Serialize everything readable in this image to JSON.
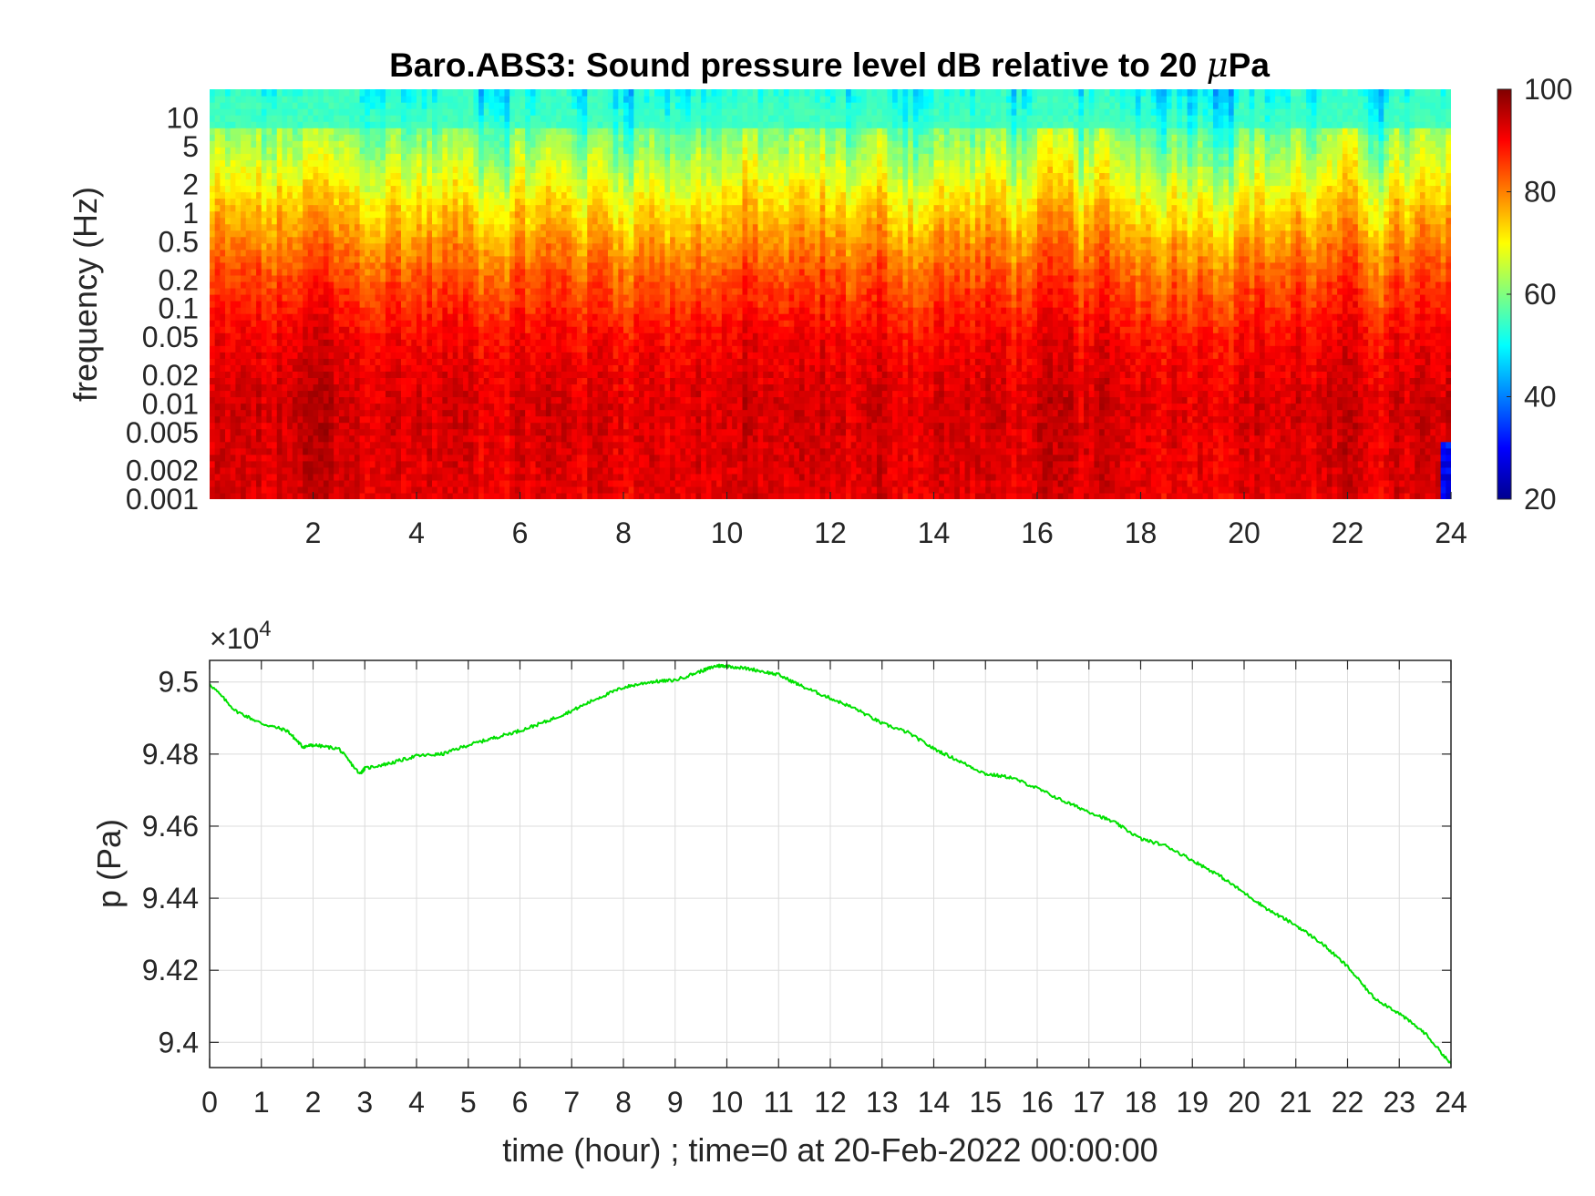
{
  "chart_data": [
    {
      "type": "heatmap",
      "title_main": "Baro.ABS3: Sound pressure level dB relative to 20 ",
      "title_mu": "μ",
      "title_unit": "Pa",
      "ylabel": "frequency (Hz)",
      "xlabel": "",
      "x_range": [
        0,
        24
      ],
      "x_ticks": [
        2,
        4,
        6,
        8,
        10,
        12,
        14,
        16,
        18,
        20,
        22,
        24
      ],
      "y_scale": "log",
      "y_range": [
        0.001,
        20
      ],
      "y_ticks": [
        0.001,
        0.002,
        0.005,
        0.01,
        0.02,
        0.05,
        0.1,
        0.2,
        0.5,
        1,
        2,
        5,
        10
      ],
      "y_tick_labels": [
        "0.001",
        "0.002",
        "0.005",
        "0.01",
        "0.02",
        "0.05",
        "0.1",
        "0.2",
        "0.5",
        "1",
        "2",
        "5",
        "10"
      ],
      "colorbar": {
        "range": [
          20,
          100
        ],
        "ticks": [
          "20",
          "40",
          "60",
          "80",
          "100"
        ],
        "colormap": "jet"
      },
      "level_profile_db": [
        {
          "freq_hz": 0.001,
          "level": 92
        },
        {
          "freq_hz": 0.01,
          "level": 93
        },
        {
          "freq_hz": 0.05,
          "level": 90
        },
        {
          "freq_hz": 0.2,
          "level": 84
        },
        {
          "freq_hz": 1,
          "level": 74
        },
        {
          "freq_hz": 5,
          "level": 62
        },
        {
          "freq_hz": 20,
          "level": 52
        }
      ],
      "grid": false
    },
    {
      "type": "line",
      "ylabel": "p (Pa)",
      "xlabel": "time (hour) ; time=0 at 20-Feb-2022 00:00:00",
      "y_multiplier": "×10",
      "y_exponent": "4",
      "x_range": [
        0,
        24
      ],
      "x_ticks": [
        "0",
        "1",
        "2",
        "3",
        "4",
        "5",
        "6",
        "7",
        "8",
        "9",
        "10",
        "11",
        "12",
        "13",
        "14",
        "15",
        "16",
        "17",
        "18",
        "19",
        "20",
        "21",
        "22",
        "23",
        "24"
      ],
      "y_range": [
        9.393,
        9.506
      ],
      "y_ticks": [
        "9.4",
        "9.42",
        "9.44",
        "9.46",
        "9.48",
        "9.5"
      ],
      "grid": true,
      "series": [
        {
          "color": "#00e000",
          "x": [
            0,
            0.5,
            1,
            1.5,
            1.8,
            2,
            2.5,
            2.9,
            3,
            3.5,
            4,
            4.5,
            5,
            5.5,
            6,
            6.5,
            7,
            7.5,
            8,
            8.5,
            9,
            9.5,
            9.8,
            10,
            10.5,
            11,
            11.5,
            12,
            12.5,
            13,
            13.5,
            14,
            14.5,
            15,
            15.5,
            16,
            16.5,
            17,
            17.5,
            18,
            18.5,
            19,
            19.5,
            20,
            20.5,
            21,
            21.5,
            22,
            22.5,
            23,
            23.5,
            24
          ],
          "y": [
            9.4995,
            9.492,
            9.4885,
            9.4865,
            9.482,
            9.4825,
            9.4815,
            9.4745,
            9.476,
            9.4775,
            9.4795,
            9.48,
            9.4825,
            9.4845,
            9.4865,
            9.489,
            9.492,
            9.4955,
            9.4985,
            9.5,
            9.5005,
            9.503,
            9.5045,
            9.5045,
            9.5035,
            9.502,
            9.4985,
            9.4955,
            9.4925,
            9.4885,
            9.486,
            9.4815,
            9.478,
            9.4745,
            9.4735,
            9.4705,
            9.467,
            9.464,
            9.461,
            9.4565,
            9.4545,
            9.4505,
            9.4465,
            9.4415,
            9.4365,
            9.4325,
            9.4275,
            9.421,
            9.4125,
            9.408,
            9.4025,
            9.394
          ]
        }
      ]
    }
  ]
}
